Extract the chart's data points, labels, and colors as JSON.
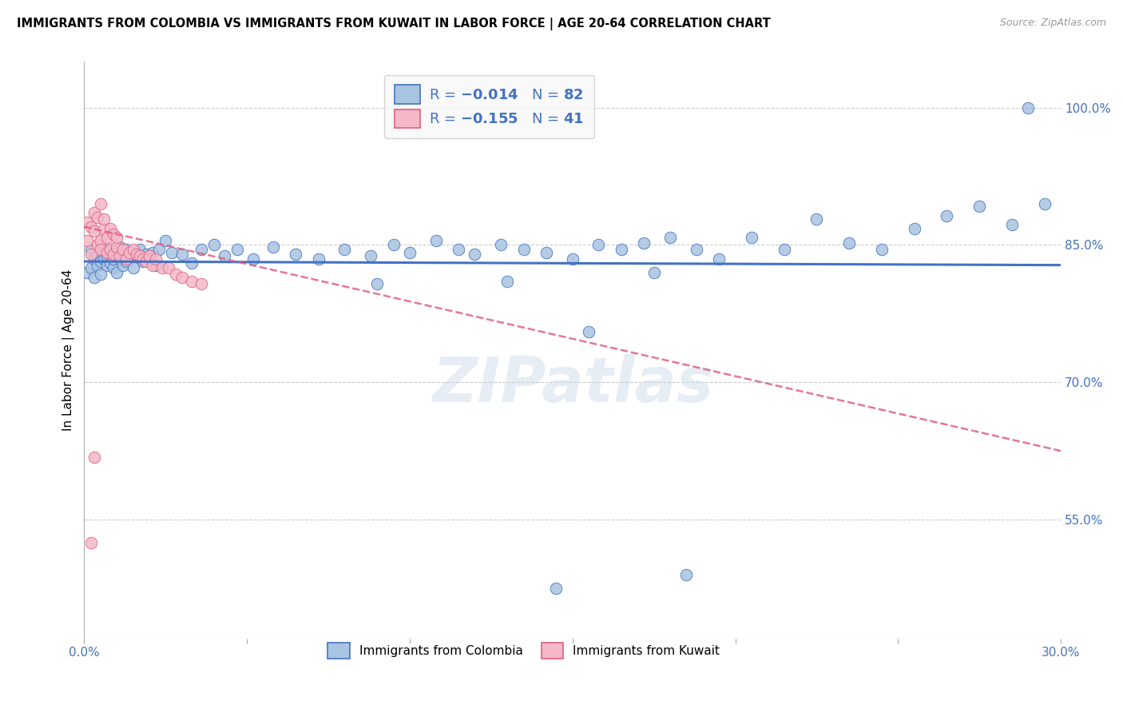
{
  "title": "IMMIGRANTS FROM COLOMBIA VS IMMIGRANTS FROM KUWAIT IN LABOR FORCE | AGE 20-64 CORRELATION CHART",
  "source": "Source: ZipAtlas.com",
  "ylabel": "In Labor Force | Age 20-64",
  "xlim": [
    0.0,
    0.3
  ],
  "ylim": [
    0.42,
    1.05
  ],
  "xticks": [
    0.0,
    0.05,
    0.1,
    0.15,
    0.2,
    0.25,
    0.3
  ],
  "ytick_labels_right": [
    "100.0%",
    "85.0%",
    "70.0%",
    "55.0%"
  ],
  "ytick_positions_right": [
    1.0,
    0.85,
    0.7,
    0.55
  ],
  "colombia_N": "82",
  "kuwait_N": "41",
  "colombia_color": "#a8c4e0",
  "kuwait_color": "#f4b8c8",
  "colombia_line_color": "#4472c4",
  "kuwait_line_color": "#e06080",
  "watermark": "ZIPatlas",
  "colombia_x": [
    0.001,
    0.002,
    0.002,
    0.003,
    0.003,
    0.004,
    0.004,
    0.005,
    0.005,
    0.006,
    0.006,
    0.007,
    0.007,
    0.008,
    0.008,
    0.009,
    0.009,
    0.01,
    0.01,
    0.011,
    0.011,
    0.012,
    0.012,
    0.013,
    0.013,
    0.014,
    0.015,
    0.015,
    0.016,
    0.017,
    0.018,
    0.019,
    0.02,
    0.021,
    0.022,
    0.023,
    0.025,
    0.027,
    0.03,
    0.033,
    0.036,
    0.04,
    0.043,
    0.047,
    0.052,
    0.058,
    0.065,
    0.072,
    0.08,
    0.088,
    0.095,
    0.1,
    0.108,
    0.115,
    0.12,
    0.128,
    0.135,
    0.142,
    0.15,
    0.158,
    0.165,
    0.172,
    0.18,
    0.188,
    0.195,
    0.205,
    0.215,
    0.225,
    0.235,
    0.245,
    0.255,
    0.265,
    0.275,
    0.285,
    0.155,
    0.09,
    0.13,
    0.175,
    0.29,
    0.295,
    0.145,
    0.185
  ],
  "colombia_y": [
    0.82,
    0.845,
    0.825,
    0.835,
    0.815,
    0.828,
    0.84,
    0.832,
    0.818,
    0.835,
    0.845,
    0.828,
    0.838,
    0.83,
    0.842,
    0.825,
    0.835,
    0.84,
    0.82,
    0.835,
    0.848,
    0.828,
    0.838,
    0.832,
    0.845,
    0.835,
    0.84,
    0.825,
    0.838,
    0.845,
    0.832,
    0.84,
    0.835,
    0.842,
    0.828,
    0.845,
    0.855,
    0.842,
    0.84,
    0.83,
    0.845,
    0.85,
    0.838,
    0.845,
    0.835,
    0.848,
    0.84,
    0.835,
    0.845,
    0.838,
    0.85,
    0.842,
    0.855,
    0.845,
    0.84,
    0.85,
    0.845,
    0.842,
    0.835,
    0.85,
    0.845,
    0.852,
    0.858,
    0.845,
    0.835,
    0.858,
    0.845,
    0.878,
    0.852,
    0.845,
    0.868,
    0.882,
    0.892,
    0.872,
    0.755,
    0.808,
    0.81,
    0.82,
    1.0,
    0.895,
    0.475,
    0.49
  ],
  "kuwait_x": [
    0.001,
    0.001,
    0.002,
    0.002,
    0.003,
    0.003,
    0.004,
    0.004,
    0.005,
    0.005,
    0.006,
    0.006,
    0.007,
    0.007,
    0.008,
    0.008,
    0.009,
    0.009,
    0.01,
    0.01,
    0.011,
    0.012,
    0.013,
    0.014,
    0.015,
    0.016,
    0.017,
    0.018,
    0.019,
    0.02,
    0.021,
    0.022,
    0.024,
    0.026,
    0.028,
    0.03,
    0.033,
    0.036,
    0.003,
    0.005,
    0.002
  ],
  "kuwait_y": [
    0.855,
    0.875,
    0.84,
    0.87,
    0.865,
    0.885,
    0.85,
    0.88,
    0.855,
    0.845,
    0.868,
    0.878,
    0.842,
    0.858,
    0.845,
    0.868,
    0.84,
    0.862,
    0.848,
    0.858,
    0.838,
    0.845,
    0.835,
    0.842,
    0.845,
    0.84,
    0.838,
    0.835,
    0.832,
    0.838,
    0.828,
    0.835,
    0.825,
    0.825,
    0.818,
    0.815,
    0.81,
    0.808,
    0.618,
    0.895,
    0.525
  ],
  "col_line_x": [
    0.0,
    0.3
  ],
  "col_line_y": [
    0.832,
    0.828
  ],
  "kuw_line_x": [
    0.0,
    0.3
  ],
  "kuw_line_y": [
    0.87,
    0.625
  ]
}
